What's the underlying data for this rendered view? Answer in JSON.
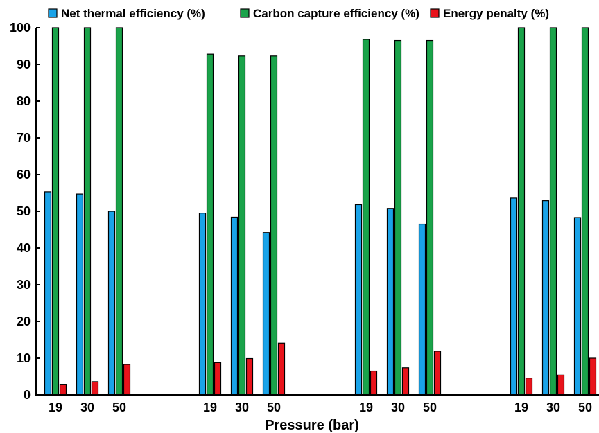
{
  "chart_data": {
    "type": "bar",
    "title": "",
    "xlabel": "Pressure (bar)",
    "ylabel": "",
    "ylim": [
      0,
      100
    ],
    "yticks": [
      0,
      10,
      20,
      30,
      40,
      50,
      60,
      70,
      80,
      90,
      100
    ],
    "legend_position": "top",
    "grid": false,
    "categories": [
      "19",
      "30",
      "50",
      "19",
      "30",
      "50",
      "19",
      "30",
      "50",
      "19",
      "30",
      "50"
    ],
    "series": [
      {
        "name": "Net thermal efficiency (%)",
        "color": "#1aa3e8",
        "values": [
          55.3,
          54.7,
          50.0,
          49.5,
          48.4,
          44.2,
          51.8,
          50.8,
          46.5,
          53.6,
          52.9,
          48.3
        ]
      },
      {
        "name": "Carbon capture efficiency (%)",
        "color": "#1aa34a",
        "values": [
          100,
          100,
          100,
          92.8,
          92.3,
          92.3,
          96.8,
          96.5,
          96.5,
          100,
          100,
          100
        ]
      },
      {
        "name": "Energy penalty (%)",
        "color": "#e8131b",
        "values": [
          2.9,
          3.6,
          8.3,
          8.8,
          9.9,
          14.1,
          6.5,
          7.4,
          11.9,
          4.6,
          5.4,
          10.0
        ]
      }
    ]
  }
}
